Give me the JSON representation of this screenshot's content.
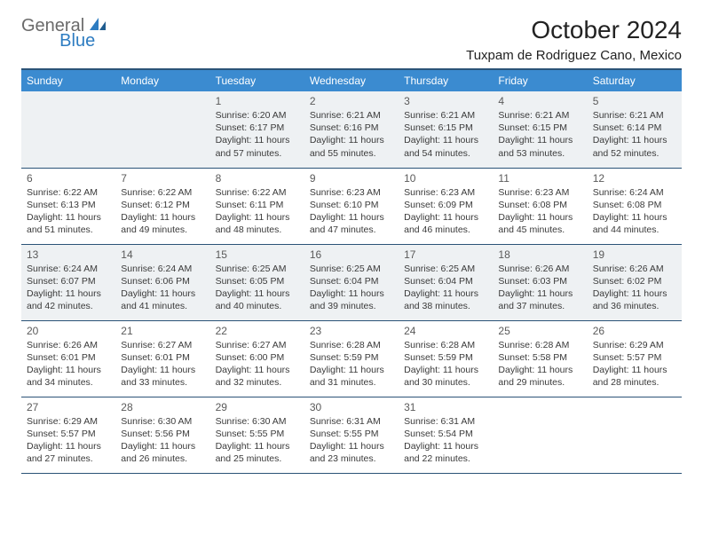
{
  "logo": {
    "part1": "General",
    "part2": "Blue"
  },
  "title": "October 2024",
  "location": "Tuxpam de Rodriguez Cano, Mexico",
  "colors": {
    "header_bg": "#3b8bd0",
    "header_text": "#ffffff",
    "divider": "#2b5377",
    "shaded_row": "#eef1f3",
    "logo_gray": "#6a6a6a",
    "logo_blue": "#2d7cc1"
  },
  "weekdays": [
    "Sunday",
    "Monday",
    "Tuesday",
    "Wednesday",
    "Thursday",
    "Friday",
    "Saturday"
  ],
  "weeks": [
    [
      null,
      null,
      {
        "n": "1",
        "sr": "6:20 AM",
        "ss": "6:17 PM",
        "dl": "11 hours and 57 minutes."
      },
      {
        "n": "2",
        "sr": "6:21 AM",
        "ss": "6:16 PM",
        "dl": "11 hours and 55 minutes."
      },
      {
        "n": "3",
        "sr": "6:21 AM",
        "ss": "6:15 PM",
        "dl": "11 hours and 54 minutes."
      },
      {
        "n": "4",
        "sr": "6:21 AM",
        "ss": "6:15 PM",
        "dl": "11 hours and 53 minutes."
      },
      {
        "n": "5",
        "sr": "6:21 AM",
        "ss": "6:14 PM",
        "dl": "11 hours and 52 minutes."
      }
    ],
    [
      {
        "n": "6",
        "sr": "6:22 AM",
        "ss": "6:13 PM",
        "dl": "11 hours and 51 minutes."
      },
      {
        "n": "7",
        "sr": "6:22 AM",
        "ss": "6:12 PM",
        "dl": "11 hours and 49 minutes."
      },
      {
        "n": "8",
        "sr": "6:22 AM",
        "ss": "6:11 PM",
        "dl": "11 hours and 48 minutes."
      },
      {
        "n": "9",
        "sr": "6:23 AM",
        "ss": "6:10 PM",
        "dl": "11 hours and 47 minutes."
      },
      {
        "n": "10",
        "sr": "6:23 AM",
        "ss": "6:09 PM",
        "dl": "11 hours and 46 minutes."
      },
      {
        "n": "11",
        "sr": "6:23 AM",
        "ss": "6:08 PM",
        "dl": "11 hours and 45 minutes."
      },
      {
        "n": "12",
        "sr": "6:24 AM",
        "ss": "6:08 PM",
        "dl": "11 hours and 44 minutes."
      }
    ],
    [
      {
        "n": "13",
        "sr": "6:24 AM",
        "ss": "6:07 PM",
        "dl": "11 hours and 42 minutes."
      },
      {
        "n": "14",
        "sr": "6:24 AM",
        "ss": "6:06 PM",
        "dl": "11 hours and 41 minutes."
      },
      {
        "n": "15",
        "sr": "6:25 AM",
        "ss": "6:05 PM",
        "dl": "11 hours and 40 minutes."
      },
      {
        "n": "16",
        "sr": "6:25 AM",
        "ss": "6:04 PM",
        "dl": "11 hours and 39 minutes."
      },
      {
        "n": "17",
        "sr": "6:25 AM",
        "ss": "6:04 PM",
        "dl": "11 hours and 38 minutes."
      },
      {
        "n": "18",
        "sr": "6:26 AM",
        "ss": "6:03 PM",
        "dl": "11 hours and 37 minutes."
      },
      {
        "n": "19",
        "sr": "6:26 AM",
        "ss": "6:02 PM",
        "dl": "11 hours and 36 minutes."
      }
    ],
    [
      {
        "n": "20",
        "sr": "6:26 AM",
        "ss": "6:01 PM",
        "dl": "11 hours and 34 minutes."
      },
      {
        "n": "21",
        "sr": "6:27 AM",
        "ss": "6:01 PM",
        "dl": "11 hours and 33 minutes."
      },
      {
        "n": "22",
        "sr": "6:27 AM",
        "ss": "6:00 PM",
        "dl": "11 hours and 32 minutes."
      },
      {
        "n": "23",
        "sr": "6:28 AM",
        "ss": "5:59 PM",
        "dl": "11 hours and 31 minutes."
      },
      {
        "n": "24",
        "sr": "6:28 AM",
        "ss": "5:59 PM",
        "dl": "11 hours and 30 minutes."
      },
      {
        "n": "25",
        "sr": "6:28 AM",
        "ss": "5:58 PM",
        "dl": "11 hours and 29 minutes."
      },
      {
        "n": "26",
        "sr": "6:29 AM",
        "ss": "5:57 PM",
        "dl": "11 hours and 28 minutes."
      }
    ],
    [
      {
        "n": "27",
        "sr": "6:29 AM",
        "ss": "5:57 PM",
        "dl": "11 hours and 27 minutes."
      },
      {
        "n": "28",
        "sr": "6:30 AM",
        "ss": "5:56 PM",
        "dl": "11 hours and 26 minutes."
      },
      {
        "n": "29",
        "sr": "6:30 AM",
        "ss": "5:55 PM",
        "dl": "11 hours and 25 minutes."
      },
      {
        "n": "30",
        "sr": "6:31 AM",
        "ss": "5:55 PM",
        "dl": "11 hours and 23 minutes."
      },
      {
        "n": "31",
        "sr": "6:31 AM",
        "ss": "5:54 PM",
        "dl": "11 hours and 22 minutes."
      },
      null,
      null
    ]
  ],
  "labels": {
    "sunrise": "Sunrise:",
    "sunset": "Sunset:",
    "daylight": "Daylight:"
  },
  "shaded_weeks": [
    0,
    2
  ]
}
